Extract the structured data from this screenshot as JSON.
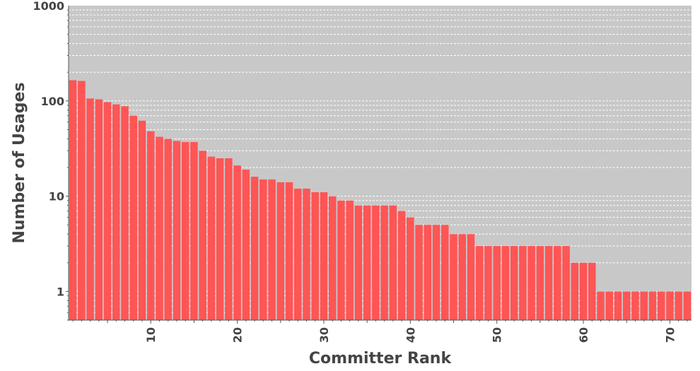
{
  "chart_data": {
    "type": "bar",
    "xlabel": "Committer Rank",
    "ylabel": "Number of Usages",
    "y_scale": "log",
    "ylim": [
      0.5,
      1000
    ],
    "xlim": [
      0.5,
      72.5
    ],
    "grid": true,
    "x_ticks": [
      10,
      20,
      30,
      40,
      50,
      60,
      70
    ],
    "y_ticks": [
      1,
      10,
      100,
      1000
    ],
    "x_tick_labels": [
      "10",
      "20",
      "30",
      "40",
      "50",
      "60",
      "70"
    ],
    "y_tick_labels": [
      "1",
      "10",
      "100",
      "1000"
    ],
    "colors": {
      "bar": "#ff5555",
      "plot_background": "#c8c8c8",
      "grid": "#ffffff",
      "text": "#444444"
    },
    "x": [
      1,
      2,
      3,
      4,
      5,
      6,
      7,
      8,
      9,
      10,
      11,
      12,
      13,
      14,
      15,
      16,
      17,
      18,
      19,
      20,
      21,
      22,
      23,
      24,
      25,
      26,
      27,
      28,
      29,
      30,
      31,
      32,
      33,
      34,
      35,
      36,
      37,
      38,
      39,
      40,
      41,
      42,
      43,
      44,
      45,
      46,
      47,
      48,
      49,
      50,
      51,
      52,
      53,
      54,
      55,
      56,
      57,
      58,
      59,
      60,
      61,
      62,
      63,
      64,
      65,
      66,
      67,
      68,
      69,
      70,
      71,
      72
    ],
    "values": [
      165,
      162,
      106,
      104,
      97,
      92,
      88,
      70,
      62,
      48,
      42,
      40,
      38,
      37,
      37,
      30,
      26,
      25,
      25,
      21,
      19,
      16,
      15,
      15,
      14,
      14,
      12,
      12,
      11,
      11,
      10,
      9,
      9,
      8,
      8,
      8,
      8,
      8,
      7,
      6,
      5,
      5,
      5,
      5,
      4,
      4,
      4,
      3,
      3,
      3,
      3,
      3,
      3,
      3,
      3,
      3,
      3,
      3,
      2,
      2,
      2,
      1,
      1,
      1,
      1,
      1,
      1,
      1,
      1,
      1,
      1,
      1
    ]
  }
}
